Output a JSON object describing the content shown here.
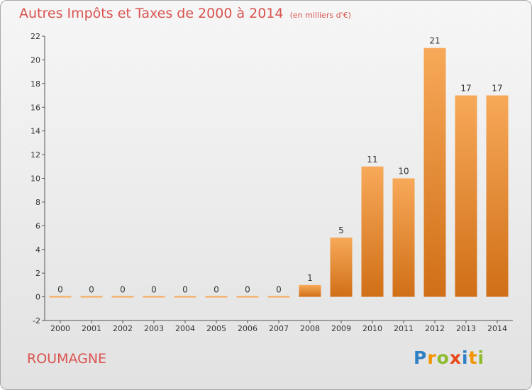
{
  "header": {
    "title": "Autres Impôts et Taxes de 2000 à 2014",
    "unit": "(en milliers d'€)"
  },
  "footer": {
    "commune": "ROUMAGNE",
    "logo_letters": [
      "P",
      "r",
      "o",
      "x",
      "i",
      "t",
      "i"
    ]
  },
  "colors": {
    "title": "#d9534f",
    "bar_light": "#f7a959",
    "bar_dark": "#d06f17",
    "logo": [
      "#2f7fc2",
      "#f29400",
      "#8dbb2b",
      "#e64a19",
      "#2f7fc2",
      "#f29400",
      "#8dbb2b"
    ]
  },
  "chart_data": {
    "type": "bar",
    "title": "Autres Impôts et Taxes de 2000 à 2014",
    "subtitle": "(en milliers d'€)",
    "categories": [
      "2000",
      "2001",
      "2002",
      "2003",
      "2004",
      "2005",
      "2006",
      "2007",
      "2008",
      "2009",
      "2010",
      "2011",
      "2012",
      "2013",
      "2014"
    ],
    "values": [
      0,
      0,
      0,
      0,
      0,
      0,
      0,
      0,
      1,
      5,
      11,
      10,
      21,
      17,
      17
    ],
    "data_labels": [
      "0",
      "0",
      "0",
      "0",
      "0",
      "0",
      "0",
      "0",
      "1",
      "5",
      "11",
      "10",
      "21",
      "17",
      "17"
    ],
    "y_ticks": [
      "-2",
      "0",
      "2",
      "4",
      "6",
      "8",
      "10",
      "12",
      "14",
      "16",
      "18",
      "20",
      "22"
    ],
    "ylim": [
      -2,
      22
    ],
    "grid": false,
    "legend": "none"
  }
}
